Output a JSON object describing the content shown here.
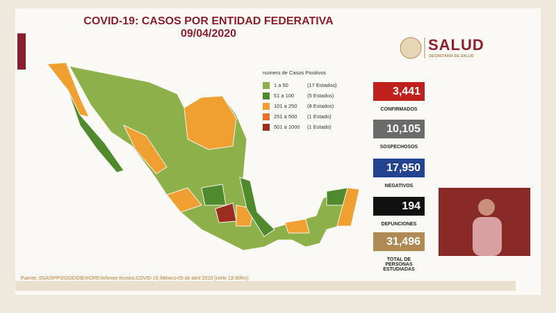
{
  "header": {
    "title": "COVID-19: CASOS POR ENTIDAD FEDERATIVA",
    "date": "09/04/2020"
  },
  "logo": {
    "name": "SALUD",
    "subtitle": "SECRETARÍA DE SALUD"
  },
  "legend": {
    "title": "numero de Casos Positivos",
    "items": [
      {
        "label": "1 a 50",
        "count": "(17 Estados)",
        "color": "#8db04a"
      },
      {
        "label": "51 a 100",
        "count": "(5 Estados)",
        "color": "#4f8a2e"
      },
      {
        "label": "101 a 250",
        "count": "(8 Estados)",
        "color": "#f0a030"
      },
      {
        "label": "251 a 500",
        "count": "(1 Estado)",
        "color": "#e8702a"
      },
      {
        "label": "501 a 1000",
        "count": "(1 Estado)",
        "color": "#9b2f1f"
      }
    ]
  },
  "stats": [
    {
      "value": "3,441",
      "label": "CONFIRMADOS",
      "color": "#c0201c"
    },
    {
      "value": "10,105",
      "label": "SOSPECHOSOS",
      "color": "#6b6b6b"
    },
    {
      "value": "17,950",
      "label": "NEGATIVOS",
      "color": "#24438f"
    },
    {
      "value": "194",
      "label": "DEFUNCIONES",
      "color": "#111111"
    },
    {
      "value": "31,496",
      "label": "TOTAL DE PERSONAS ESTUDIADAS",
      "color": "#b08a55"
    }
  ],
  "source": "Fuente: SSA/SPPS/DGE/DIE/InDRE/Informe técnico.COVID-19 /México-09 de abril 2020 (corte 13:30hrs)"
}
